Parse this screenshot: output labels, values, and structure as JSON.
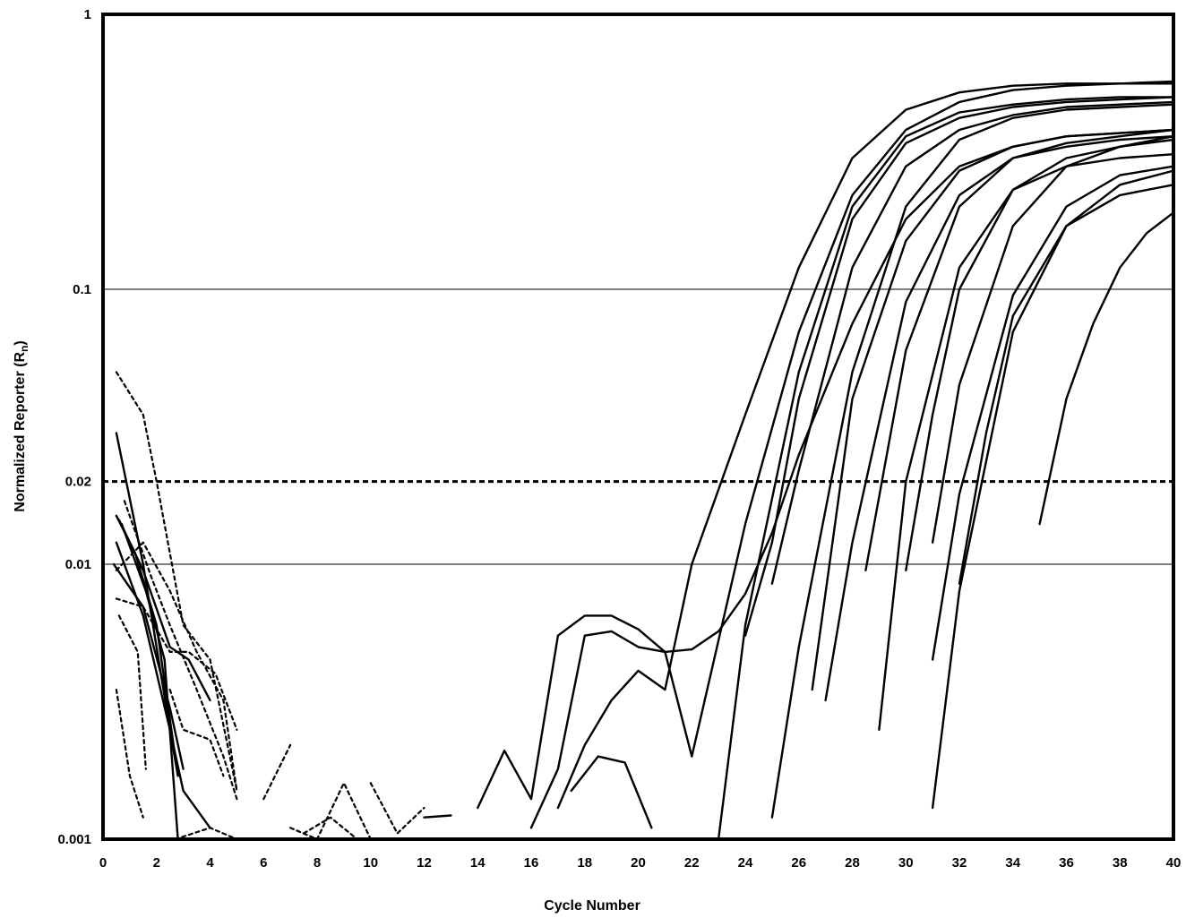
{
  "chart_data": {
    "type": "line",
    "title": "",
    "xlabel": "Cycle Number",
    "ylabel": "Normalized Reporter (R",
    "ylabel_subscript": "n",
    "ylabel_suffix": ")",
    "xlim": [
      0,
      40
    ],
    "ylim": [
      0.001,
      1
    ],
    "yscale": "log",
    "x_ticks": [
      0,
      2,
      4,
      6,
      8,
      10,
      12,
      14,
      16,
      18,
      20,
      22,
      24,
      26,
      28,
      30,
      32,
      34,
      36,
      38,
      40
    ],
    "y_ticks": [
      {
        "value": 0.001,
        "label": "0.001"
      },
      {
        "value": 0.01,
        "label": "0.01"
      },
      {
        "value": 0.02,
        "label": "0.02"
      },
      {
        "value": 0.1,
        "label": "0.1"
      },
      {
        "value": 1,
        "label": "1"
      }
    ],
    "reference_lines": [
      {
        "y": 0.1,
        "style": "solid"
      },
      {
        "y": 0.01,
        "style": "solid"
      },
      {
        "y": 0.02,
        "style": "dashed"
      }
    ],
    "legend": "none",
    "grid": false,
    "line_color": "#000000",
    "series": [
      {
        "style": "solid",
        "points": [
          [
            0.5,
            0.03
          ],
          [
            1.5,
            0.01
          ],
          [
            2.5,
            0.0025
          ],
          [
            2.8,
            0.0017
          ]
        ]
      },
      {
        "style": "solid",
        "points": [
          [
            0.5,
            0.015
          ],
          [
            1.2,
            0.011
          ],
          [
            2,
            0.006
          ],
          [
            2.8,
            0.0017
          ]
        ]
      },
      {
        "style": "solid",
        "points": [
          [
            0.6,
            0.0145
          ],
          [
            1.5,
            0.0095
          ],
          [
            2.5,
            0.005
          ],
          [
            3.2,
            0.0045
          ],
          [
            4,
            0.0032
          ]
        ]
      },
      {
        "style": "solid",
        "points": [
          [
            0.5,
            0.012
          ],
          [
            1.5,
            0.0065
          ],
          [
            2.5,
            0.0025
          ],
          [
            3,
            0.0015
          ],
          [
            4,
            0.0011
          ]
        ]
      },
      {
        "style": "solid",
        "points": [
          [
            0.7,
            0.014
          ],
          [
            1.6,
            0.008
          ],
          [
            2.3,
            0.0045
          ],
          [
            2.8,
            0.001
          ]
        ]
      },
      {
        "style": "solid",
        "points": [
          [
            0.4,
            0.01
          ],
          [
            1.5,
            0.007
          ],
          [
            2.5,
            0.003
          ],
          [
            3,
            0.0018
          ]
        ]
      },
      {
        "style": "dashed",
        "points": [
          [
            0.5,
            0.05
          ],
          [
            1.5,
            0.035
          ],
          [
            2,
            0.02
          ],
          [
            3,
            0.006
          ],
          [
            4,
            0.0045
          ],
          [
            5,
            0.0015
          ]
        ]
      },
      {
        "style": "dashed",
        "points": [
          [
            0.5,
            0.0095
          ],
          [
            1.5,
            0.012
          ],
          [
            2.5,
            0.008
          ],
          [
            3.5,
            0.0048
          ],
          [
            4.5,
            0.0032
          ],
          [
            5,
            0.0015
          ]
        ]
      },
      {
        "style": "dashed",
        "points": [
          [
            0.5,
            0.0075
          ],
          [
            1.5,
            0.007
          ],
          [
            2.5,
            0.0048
          ],
          [
            3.2,
            0.0048
          ],
          [
            4.2,
            0.004
          ],
          [
            5,
            0.0025
          ]
        ]
      },
      {
        "style": "dashed",
        "points": [
          [
            0.5,
            0.0035
          ],
          [
            1,
            0.0017
          ],
          [
            1.5,
            0.0012
          ]
        ]
      },
      {
        "style": "dashed",
        "points": [
          [
            0.6,
            0.0065
          ],
          [
            1.3,
            0.0048
          ],
          [
            1.6,
            0.0018
          ]
        ]
      },
      {
        "style": "dashed",
        "points": [
          [
            0.8,
            0.017
          ],
          [
            1.8,
            0.009
          ],
          [
            2.5,
            0.006
          ],
          [
            3.5,
            0.0035
          ],
          [
            4.5,
            0.002
          ],
          [
            5,
            0.0014
          ]
        ]
      },
      {
        "style": "dashed",
        "points": [
          [
            2.7,
            0.001
          ],
          [
            4,
            0.0011
          ],
          [
            5,
            0.001
          ]
        ]
      },
      {
        "style": "dashed",
        "points": [
          [
            2.5,
            0.0035
          ],
          [
            3,
            0.0025
          ],
          [
            4,
            0.0023
          ],
          [
            4.5,
            0.0017
          ]
        ]
      },
      {
        "style": "dashed",
        "points": [
          [
            6,
            0.0014
          ],
          [
            7,
            0.0022
          ]
        ]
      },
      {
        "style": "dashed",
        "points": [
          [
            7,
            0.0011
          ],
          [
            8,
            0.001
          ],
          [
            9,
            0.0016
          ],
          [
            10,
            0.001
          ]
        ]
      },
      {
        "style": "dashed",
        "points": [
          [
            7.5,
            0.00105
          ],
          [
            8.5,
            0.0012
          ],
          [
            9.5,
            0.001
          ]
        ]
      },
      {
        "style": "dashed",
        "points": [
          [
            10,
            0.0016
          ],
          [
            11,
            0.00105
          ],
          [
            12,
            0.0013
          ]
        ]
      },
      {
        "style": "solid",
        "points": [
          [
            12,
            0.0012
          ],
          [
            13,
            0.00122
          ]
        ]
      },
      {
        "style": "solid",
        "points": [
          [
            14,
            0.0013
          ],
          [
            15,
            0.0021
          ],
          [
            16,
            0.0014
          ],
          [
            17,
            0.0055
          ],
          [
            18,
            0.0065
          ],
          [
            19,
            0.0065
          ],
          [
            20,
            0.0058
          ],
          [
            21,
            0.0048
          ],
          [
            22,
            0.0049
          ],
          [
            23,
            0.0057
          ],
          [
            24,
            0.0078
          ],
          [
            25,
            0.013
          ],
          [
            26,
            0.025
          ],
          [
            28,
            0.075
          ],
          [
            30,
            0.18
          ],
          [
            32,
            0.28
          ],
          [
            34,
            0.33
          ],
          [
            36,
            0.36
          ],
          [
            38,
            0.37
          ],
          [
            40,
            0.38
          ]
        ]
      },
      {
        "style": "solid",
        "points": [
          [
            16,
            0.0011
          ],
          [
            17,
            0.0018
          ],
          [
            18,
            0.0055
          ],
          [
            19,
            0.0057
          ],
          [
            20,
            0.005
          ],
          [
            21,
            0.0048
          ],
          [
            22,
            0.002
          ],
          [
            24,
            0.014
          ],
          [
            26,
            0.07
          ],
          [
            28,
            0.22
          ],
          [
            30,
            0.38
          ],
          [
            32,
            0.48
          ],
          [
            34,
            0.53
          ],
          [
            36,
            0.55
          ],
          [
            38,
            0.56
          ],
          [
            40,
            0.56
          ]
        ]
      },
      {
        "style": "solid",
        "points": [
          [
            17,
            0.0013
          ],
          [
            18,
            0.0022
          ],
          [
            19,
            0.0032
          ],
          [
            20,
            0.0041
          ],
          [
            21,
            0.0035
          ],
          [
            22,
            0.01
          ],
          [
            24,
            0.035
          ],
          [
            26,
            0.12
          ],
          [
            28,
            0.3
          ],
          [
            30,
            0.45
          ],
          [
            32,
            0.52
          ],
          [
            34,
            0.55
          ],
          [
            36,
            0.56
          ],
          [
            38,
            0.56
          ],
          [
            40,
            0.57
          ]
        ]
      },
      {
        "style": "solid",
        "points": [
          [
            17.5,
            0.0015
          ],
          [
            18.5,
            0.002
          ],
          [
            19.5,
            0.0019
          ],
          [
            20.5,
            0.0011
          ]
        ]
      },
      {
        "style": "solid",
        "points": [
          [
            23,
            0.001
          ],
          [
            24,
            0.006
          ],
          [
            26,
            0.05
          ],
          [
            28,
            0.2
          ],
          [
            30,
            0.36
          ],
          [
            32,
            0.44
          ],
          [
            34,
            0.47
          ],
          [
            36,
            0.49
          ],
          [
            38,
            0.5
          ],
          [
            40,
            0.5
          ]
        ]
      },
      {
        "style": "solid",
        "points": [
          [
            24,
            0.0055
          ],
          [
            25,
            0.012
          ],
          [
            26,
            0.04
          ],
          [
            28,
            0.18
          ],
          [
            30,
            0.34
          ],
          [
            32,
            0.42
          ],
          [
            34,
            0.46
          ],
          [
            36,
            0.48
          ],
          [
            38,
            0.49
          ],
          [
            40,
            0.5
          ]
        ]
      },
      {
        "style": "solid",
        "points": [
          [
            25,
            0.0085
          ],
          [
            26,
            0.022
          ],
          [
            28,
            0.12
          ],
          [
            30,
            0.28
          ],
          [
            32,
            0.38
          ],
          [
            34,
            0.43
          ],
          [
            36,
            0.46
          ],
          [
            38,
            0.47
          ],
          [
            40,
            0.48
          ]
        ]
      },
      {
        "style": "solid",
        "points": [
          [
            25,
            0.0012
          ],
          [
            26,
            0.005
          ],
          [
            28,
            0.05
          ],
          [
            30,
            0.2
          ],
          [
            32,
            0.35
          ],
          [
            34,
            0.42
          ],
          [
            36,
            0.45
          ],
          [
            38,
            0.46
          ],
          [
            40,
            0.47
          ]
        ]
      },
      {
        "style": "solid",
        "points": [
          [
            26.5,
            0.0035
          ],
          [
            28,
            0.04
          ],
          [
            30,
            0.15
          ],
          [
            32,
            0.27
          ],
          [
            34,
            0.33
          ],
          [
            36,
            0.36
          ],
          [
            38,
            0.37
          ],
          [
            40,
            0.38
          ]
        ]
      },
      {
        "style": "solid",
        "points": [
          [
            27,
            0.0032
          ],
          [
            28,
            0.012
          ],
          [
            30,
            0.09
          ],
          [
            32,
            0.22
          ],
          [
            34,
            0.3
          ],
          [
            36,
            0.33
          ],
          [
            38,
            0.35
          ],
          [
            40,
            0.36
          ]
        ]
      },
      {
        "style": "solid",
        "points": [
          [
            28.5,
            0.0095
          ],
          [
            30,
            0.06
          ],
          [
            32,
            0.2
          ],
          [
            34,
            0.3
          ],
          [
            36,
            0.34
          ],
          [
            38,
            0.36
          ],
          [
            40,
            0.38
          ]
        ]
      },
      {
        "style": "solid",
        "points": [
          [
            29,
            0.0025
          ],
          [
            30,
            0.02
          ],
          [
            32,
            0.12
          ],
          [
            34,
            0.23
          ],
          [
            36,
            0.28
          ],
          [
            38,
            0.3
          ],
          [
            40,
            0.31
          ]
        ]
      },
      {
        "style": "solid",
        "points": [
          [
            30,
            0.0095
          ],
          [
            31,
            0.035
          ],
          [
            32,
            0.1
          ],
          [
            34,
            0.23
          ],
          [
            36,
            0.3
          ],
          [
            38,
            0.33
          ],
          [
            40,
            0.35
          ]
        ]
      },
      {
        "style": "solid",
        "points": [
          [
            31,
            0.012
          ],
          [
            32,
            0.045
          ],
          [
            34,
            0.17
          ],
          [
            36,
            0.28
          ],
          [
            38,
            0.33
          ],
          [
            40,
            0.36
          ]
        ]
      },
      {
        "style": "solid",
        "points": [
          [
            31,
            0.0045
          ],
          [
            32,
            0.018
          ],
          [
            34,
            0.095
          ],
          [
            36,
            0.2
          ],
          [
            38,
            0.26
          ],
          [
            40,
            0.28
          ]
        ]
      },
      {
        "style": "solid",
        "points": [
          [
            31,
            0.0013
          ],
          [
            32,
            0.008
          ],
          [
            34,
            0.07
          ],
          [
            36,
            0.17
          ],
          [
            38,
            0.24
          ],
          [
            40,
            0.27
          ]
        ]
      },
      {
        "style": "solid",
        "points": [
          [
            32,
            0.0085
          ],
          [
            33,
            0.03
          ],
          [
            34,
            0.08
          ],
          [
            36,
            0.17
          ],
          [
            38,
            0.22
          ],
          [
            40,
            0.24
          ]
        ]
      },
      {
        "style": "solid",
        "points": [
          [
            35,
            0.014
          ],
          [
            36,
            0.04
          ],
          [
            37,
            0.075
          ],
          [
            38,
            0.12
          ],
          [
            39,
            0.16
          ],
          [
            40,
            0.19
          ]
        ]
      }
    ]
  }
}
